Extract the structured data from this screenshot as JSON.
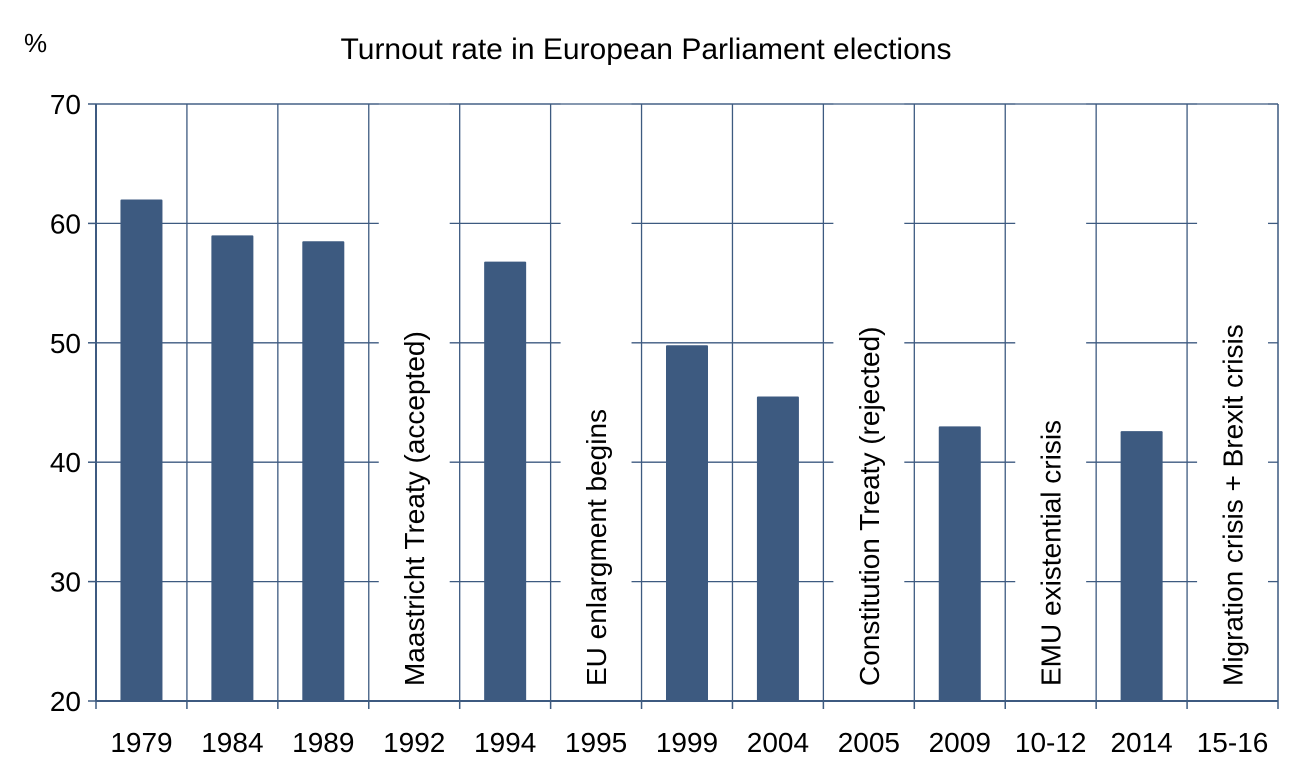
{
  "chart_data": {
    "type": "bar",
    "title": "Turnout rate in European Parliament elections",
    "ylabel": "%",
    "xlabel": "",
    "ylim": [
      20,
      70
    ],
    "yticks": [
      20,
      30,
      40,
      50,
      60,
      70
    ],
    "grid": true,
    "categories": [
      "1979",
      "1984",
      "1989",
      "1992",
      "1994",
      "1995",
      "1999",
      "2004",
      "2005",
      "2009",
      "10-12",
      "2014",
      "15-16"
    ],
    "values": [
      62.0,
      59.0,
      58.5,
      null,
      56.8,
      null,
      49.8,
      45.5,
      null,
      43.0,
      null,
      42.6,
      null
    ],
    "annotations": [
      {
        "category": "1992",
        "text": "Maastricht Treaty (accepted)"
      },
      {
        "category": "1995",
        "text": "EU enlargment begins"
      },
      {
        "category": "2005",
        "text": "Constitution Treaty (rejected)"
      },
      {
        "category": "10-12",
        "text": "EMU existential crisis"
      },
      {
        "category": "15-16",
        "text": "Migration crisis + Brexit crisis"
      }
    ],
    "colors": {
      "bar": "#3d5a80",
      "grid": "#3d5a80",
      "axis": "#3d5a80",
      "text": "#000000"
    }
  }
}
